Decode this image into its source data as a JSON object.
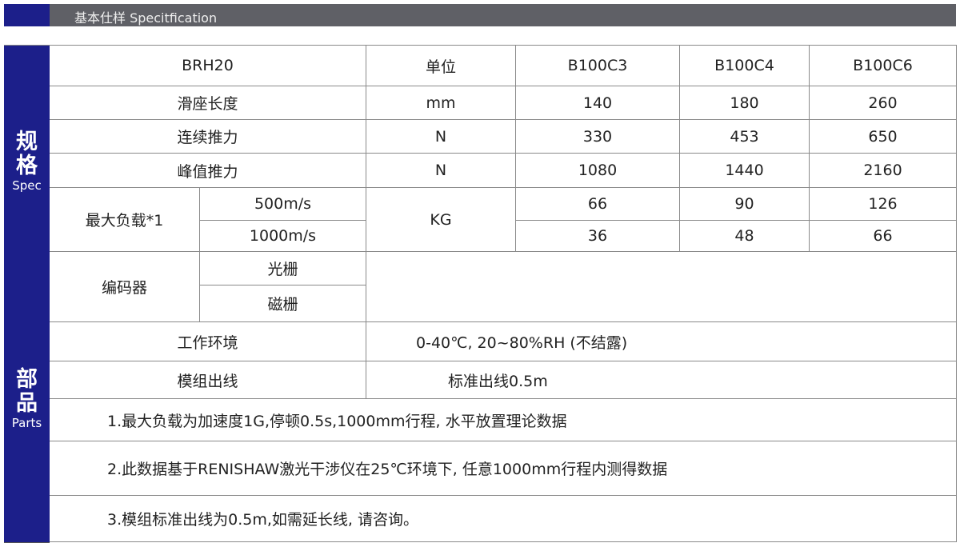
{
  "header": {
    "title": "基本仕样 Specitfication"
  },
  "side": {
    "spec_zh1": "规",
    "spec_zh2": "格",
    "spec_en": "Spec",
    "parts_zh1": "部",
    "parts_zh2": "品",
    "parts_en": "Parts"
  },
  "table": {
    "headers": [
      "BRH20",
      "单位",
      "B100C3",
      "B100C4",
      "B100C6"
    ],
    "rows": [
      {
        "label": "滑座长度",
        "unit": "mm",
        "values": [
          "140",
          "180",
          "260"
        ]
      },
      {
        "label": "连续推力",
        "unit": "N",
        "values": [
          "330",
          "453",
          "650"
        ]
      },
      {
        "label": "峰值推力",
        "unit": "N",
        "values": [
          "1080",
          "1440",
          "2160"
        ]
      }
    ],
    "max_load": {
      "label": "最大负载*1",
      "unit": "KG",
      "sub": [
        {
          "label": "500m/s",
          "values": [
            "66",
            "90",
            "126"
          ]
        },
        {
          "label": "1000m/s",
          "values": [
            "36",
            "48",
            "66"
          ]
        }
      ]
    },
    "encoder": {
      "label": "编码器",
      "sub": [
        "光栅",
        "磁栅"
      ]
    },
    "environment": {
      "label": "工作环境",
      "value": "0-40℃, 20~80%RH (不结露)"
    },
    "cable": {
      "label": "模组出线",
      "value": "标准出线0.5m"
    },
    "notes": [
      "1.最大负载为加速度1G,停顿0.5s,1000mm行程, 水平放置理论数据",
      "2.此数据基于RENISHAW激光干涉仪在25℃环境下, 任意1000mm行程内测得数据",
      "3.模组标准出线为0.5m,如需延长线, 请咨询。"
    ]
  }
}
